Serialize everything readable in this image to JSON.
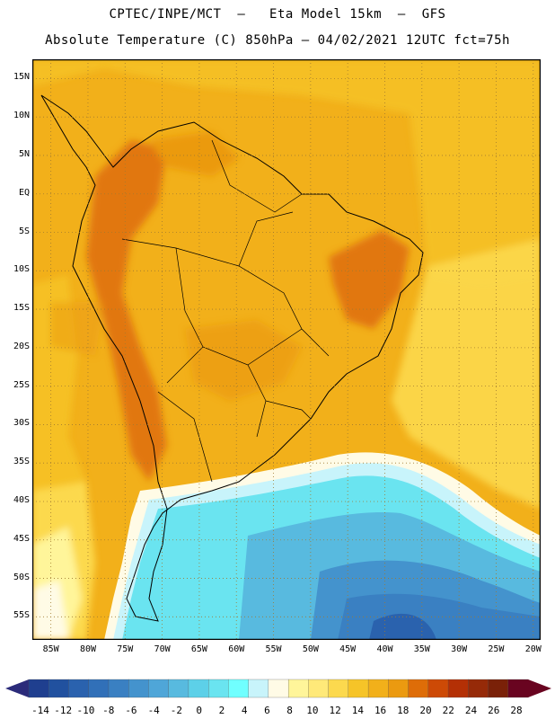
{
  "header": {
    "title_line1": "CPTEC/INPE/MCT  –   Eta Model 15km  –  GFS",
    "title_line2": "Absolute Temperature (C) 850hPa – 04/02/2021 12UTC fct=75h"
  },
  "map": {
    "lat_labels": [
      "15N",
      "10N",
      "5N",
      "EQ",
      "5S",
      "10S",
      "15S",
      "20S",
      "25S",
      "30S",
      "35S",
      "40S",
      "45S",
      "50S",
      "55S"
    ],
    "lon_labels": [
      "85W",
      "80W",
      "75W",
      "70W",
      "65W",
      "60W",
      "55W",
      "50W",
      "45W",
      "40W",
      "35W",
      "30W",
      "25W",
      "20W"
    ],
    "lat_values": [
      15,
      10,
      5,
      0,
      -5,
      -10,
      -15,
      -20,
      -25,
      -30,
      -35,
      -40,
      -45,
      -50,
      -55
    ],
    "lon_values": [
      -85,
      -80,
      -75,
      -70,
      -65,
      -60,
      -55,
      -50,
      -45,
      -40,
      -35,
      -30,
      -25,
      -20
    ],
    "gridlines": "dotted"
  },
  "colorbar": {
    "labels": [
      "-14",
      "-12",
      "-10",
      "-8",
      "-6",
      "-4",
      "-2",
      "0",
      "2",
      "4",
      "6",
      "8",
      "10",
      "12",
      "14",
      "16",
      "18",
      "20",
      "22",
      "24",
      "26",
      "28"
    ],
    "colors": [
      "#1f3f8f",
      "#21519f",
      "#2a62ae",
      "#3170b8",
      "#3a80c2",
      "#4493cd",
      "#4fa6d8",
      "#58badf",
      "#5dd0e8",
      "#6ae4f0",
      "#70ffff",
      "#c8f4fb",
      "#fffbe6",
      "#fff59a",
      "#ffe979",
      "#fcd94e",
      "#f6c428",
      "#f2b01a",
      "#eb9a10",
      "#de6d08",
      "#cd4a06",
      "#b43005",
      "#962a08",
      "#7a2108",
      "#690420"
    ],
    "left_arrow_color": "#2b2b7a",
    "right_arrow_color": "#690420"
  }
}
